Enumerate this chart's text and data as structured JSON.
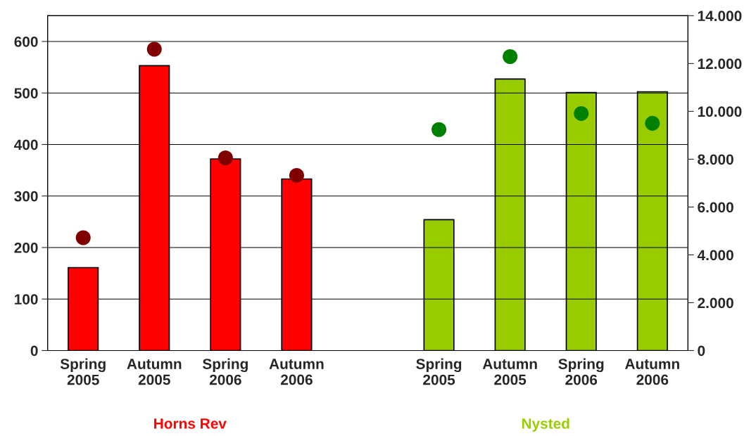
{
  "chart_data": {
    "type": "bar",
    "categories": [
      "Spring\n2005",
      "Autumn\n2005",
      "Spring\n2006",
      "Autumn\n2006",
      null,
      "Spring\n2005",
      "Autumn\n2005",
      "Spring\n2006",
      "Autumn\n2006"
    ],
    "series": [
      {
        "color": "#ff0000",
        "values": [
          161,
          553,
          372,
          333,
          null,
          null,
          null,
          null,
          null
        ]
      },
      {
        "type": "scatter",
        "color": "#800000",
        "marker": "circle",
        "values": [
          219,
          585,
          374,
          340,
          null,
          null,
          null,
          null,
          null
        ]
      },
      {
        "color": "#99cc00",
        "axis": "y2",
        "values": [
          null,
          null,
          null,
          null,
          null,
          5470,
          11350,
          10790,
          10820
        ]
      },
      {
        "type": "scatter",
        "color": "#008000",
        "marker": "circle",
        "axis": "y2",
        "values": [
          null,
          null,
          null,
          null,
          null,
          9240,
          12290,
          9910,
          9500
        ]
      }
    ],
    "annotations": [
      "Horns Rev",
      "Nysted"
    ],
    "ylim": [
      0,
      650
    ],
    "yticks": [
      0,
      100,
      200,
      300,
      400,
      500,
      600
    ],
    "y2lim": [
      0,
      14000
    ],
    "y2ticks": [
      {
        "value": 0,
        "label": "0"
      },
      {
        "value": 2000,
        "label": "2.000"
      },
      {
        "value": 4000,
        "label": "4.000"
      },
      {
        "value": 6000,
        "label": "6.000"
      },
      {
        "value": 8000,
        "label": "8.000"
      },
      {
        "value": 10000,
        "label": "10.000"
      },
      {
        "value": 12000,
        "label": "12.000"
      },
      {
        "value": 14000,
        "label": "14.000"
      }
    ],
    "grid": "y"
  }
}
